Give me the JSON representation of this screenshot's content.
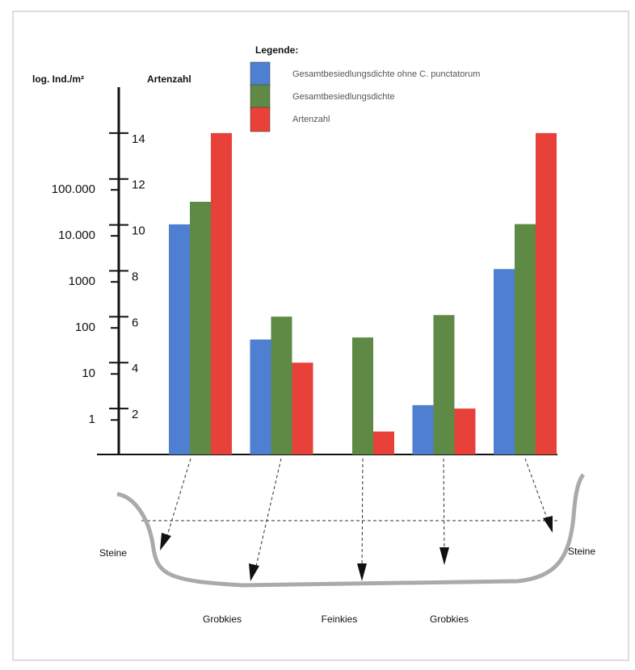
{
  "chart_data": {
    "type": "bar",
    "y_label": "log. Ind./m²",
    "y2_label": "Artenzahl",
    "legend_title": "Legende:",
    "categories": [
      "Steine",
      "Grobkies",
      "Feinkies",
      "Grobkies",
      "Steine"
    ],
    "series": [
      {
        "name": "Gesamtbesiedlungsdichte ohne C. punctatorum",
        "color": "#4f7fd0",
        "values": [
          17800,
          56,
          null,
          2.1,
          1900
        ]
      },
      {
        "name": "Gesamtbesiedlungsdichte",
        "color": "#5e8a45",
        "values": [
          55000,
          176,
          62,
          190,
          18000
        ]
      },
      {
        "name": "Artenzahl",
        "color": "#e8413a",
        "axis": "y2",
        "values": [
          14,
          4,
          1,
          2,
          14
        ]
      }
    ],
    "ylim": [
      0.178,
      17000000
    ],
    "log_scale": true,
    "yticks": [
      1,
      10,
      100,
      1000,
      {
        "value": 10000,
        "label": "10.000"
      },
      {
        "value": 100000,
        "label": "100.000"
      }
    ],
    "y2lim": [
      0,
      16
    ],
    "y2ticks": [
      2,
      4,
      6,
      8,
      10,
      12,
      14
    ],
    "legend": "top"
  }
}
